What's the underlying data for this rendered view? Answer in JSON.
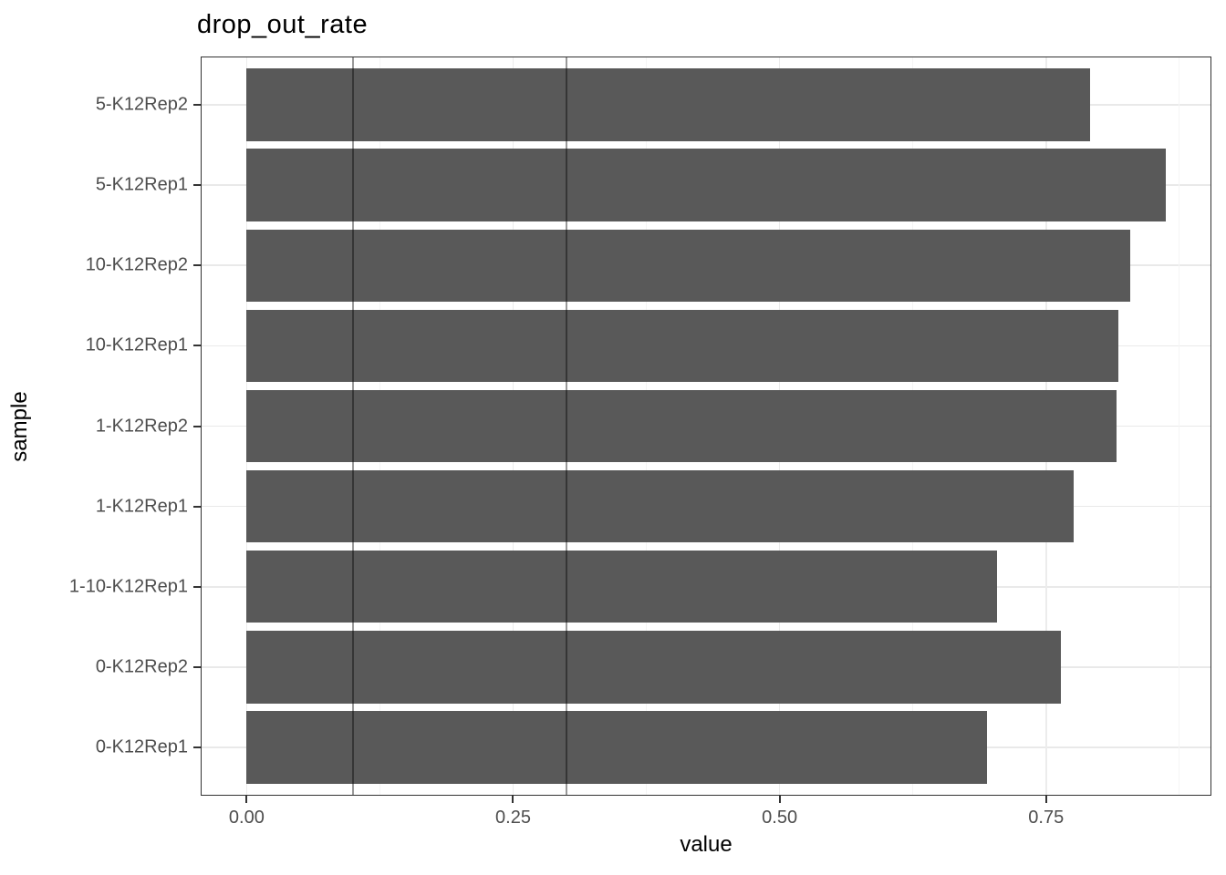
{
  "title": "drop_out_rate",
  "chart_data": {
    "type": "bar",
    "orientation": "horizontal",
    "title": "drop_out_rate",
    "xlabel": "value",
    "ylabel": "sample",
    "categories": [
      "5-K12Rep2",
      "5-K12Rep1",
      "10-K12Rep2",
      "10-K12Rep1",
      "1-K12Rep2",
      "1-K12Rep1",
      "1-10-K12Rep1",
      "0-K12Rep2",
      "0-K12Rep1"
    ],
    "values": [
      0.791,
      0.862,
      0.829,
      0.818,
      0.816,
      0.776,
      0.704,
      0.764,
      0.695
    ],
    "x_ticks": [
      0,
      0.25,
      0.5,
      0.75
    ],
    "x_tick_labels": [
      "0.00",
      "0.25",
      "0.50",
      "0.75"
    ],
    "xlim": [
      -0.043,
      0.905
    ],
    "reference_lines": [
      0.1,
      0.3
    ],
    "grid": "major and minor vertical, major horizontal",
    "legend_position": "none",
    "colors": {
      "bar_fill": "#595959",
      "reference_line": "rgba(0,0,0,0.4)",
      "panel_border": "#333333",
      "grid_major": "#ececec",
      "grid_minor": "#f5f5f5",
      "tick_label_text": "#4d4d4d",
      "title_text": "#000000"
    }
  }
}
